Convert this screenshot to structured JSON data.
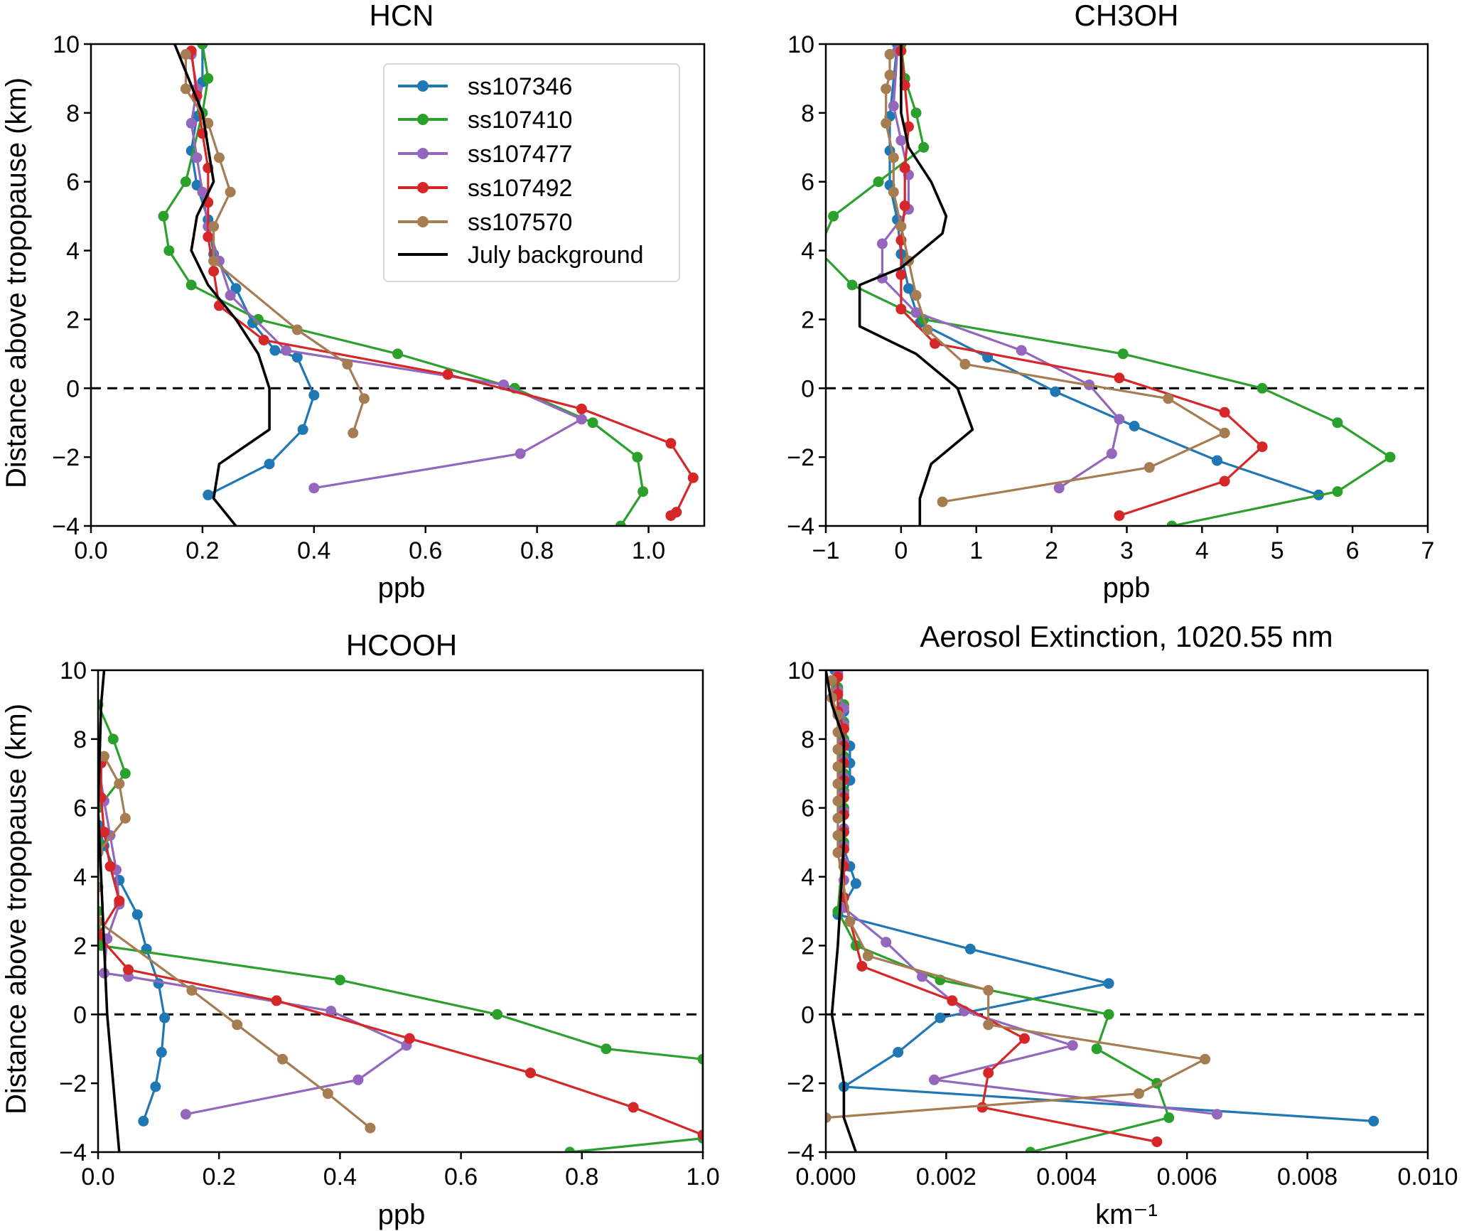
{
  "chart_data": [
    {
      "type": "line",
      "title": "HCN",
      "xlabel": "ppb",
      "ylabel": "Distance above tropopause (km)",
      "xlim": [
        0.0,
        1.1
      ],
      "ylim": [
        -4,
        10
      ],
      "xticks": [
        "0.0",
        "0.2",
        "0.4",
        "0.6",
        "0.8",
        "1.0"
      ],
      "yticks": [
        "−4",
        "−2",
        "0",
        "2",
        "4",
        "6",
        "8",
        "10"
      ],
      "grid": false,
      "zero_line": "dashed",
      "legend_position": "top-right",
      "series": [
        {
          "name": "ss107346",
          "color": "#1f77b4",
          "markers": true,
          "x": [
            0.2,
            0.2,
            0.19,
            0.18,
            0.19,
            0.21,
            0.22,
            0.26,
            0.29,
            0.33,
            0.37,
            0.4,
            0.38,
            0.32,
            0.21
          ],
          "y": [
            10.0,
            8.9,
            7.9,
            6.9,
            5.9,
            4.9,
            3.9,
            2.9,
            1.9,
            1.1,
            0.9,
            -0.2,
            -1.2,
            -2.2,
            -3.1
          ]
        },
        {
          "name": "ss107410",
          "color": "#2ca02c",
          "markers": true,
          "x": [
            0.2,
            0.21,
            0.2,
            0.17,
            0.13,
            0.14,
            0.18,
            0.3,
            0.55,
            0.76,
            0.9,
            0.98,
            0.99,
            0.95
          ],
          "y": [
            10.0,
            9.0,
            8.0,
            6.0,
            5.0,
            4.0,
            3.0,
            2.0,
            1.0,
            0.0,
            -1.0,
            -2.0,
            -3.0,
            -4.0
          ]
        },
        {
          "name": "ss107477",
          "color": "#9467bd",
          "markers": true,
          "x": [
            0.18,
            0.19,
            0.18,
            0.19,
            0.2,
            0.21,
            0.23,
            0.25,
            0.35,
            0.74,
            0.88,
            0.77,
            0.4
          ],
          "y": [
            9.7,
            8.7,
            7.7,
            6.7,
            5.7,
            4.7,
            3.7,
            2.7,
            1.1,
            0.1,
            -0.9,
            -1.9,
            -2.9
          ]
        },
        {
          "name": "ss107492",
          "color": "#d62728",
          "markers": true,
          "x": [
            0.18,
            0.19,
            0.2,
            0.21,
            0.21,
            0.21,
            0.22,
            0.23,
            0.31,
            0.64,
            0.88,
            1.04,
            1.08,
            1.05,
            1.04
          ],
          "y": [
            9.8,
            8.5,
            7.4,
            6.4,
            5.4,
            4.4,
            3.4,
            2.4,
            1.4,
            0.4,
            -0.6,
            -1.6,
            -2.6,
            -3.6,
            -3.7
          ]
        },
        {
          "name": "ss107570",
          "color": "#a67c52",
          "markers": true,
          "x": [
            0.17,
            0.17,
            0.21,
            0.23,
            0.25,
            0.22,
            0.22,
            0.37,
            0.46,
            0.49,
            0.47
          ],
          "y": [
            9.7,
            8.7,
            7.7,
            6.7,
            5.7,
            4.7,
            3.7,
            1.7,
            0.7,
            -0.3,
            -1.3
          ]
        },
        {
          "name": "July background",
          "color": "#000000",
          "markers": false,
          "x": [
            0.15,
            0.2,
            0.22,
            0.19,
            0.18,
            0.21,
            0.26,
            0.3,
            0.32,
            0.32,
            0.23,
            0.22,
            0.26
          ],
          "y": [
            10.0,
            8.0,
            6.0,
            5.0,
            4.0,
            3.0,
            2.0,
            1.0,
            0.0,
            -1.2,
            -2.2,
            -3.2,
            -4.0
          ]
        }
      ]
    },
    {
      "type": "line",
      "title": "CH3OH",
      "xlabel": "ppb",
      "ylabel": "",
      "xlim": [
        -1,
        7
      ],
      "ylim": [
        -4,
        10
      ],
      "xticks": [
        "−1",
        "0",
        "1",
        "2",
        "3",
        "4",
        "5",
        "6",
        "7"
      ],
      "yticks": [
        "−4",
        "−2",
        "0",
        "2",
        "4",
        "6",
        "8",
        "10"
      ],
      "grid": false,
      "zero_line": "dashed",
      "series": [
        {
          "name": "ss107346",
          "color": "#1f77b4",
          "markers": true,
          "x": [
            -0.05,
            -0.15,
            -0.15,
            -0.15,
            -0.05,
            0.0,
            0.1,
            0.25,
            1.15,
            2.05,
            3.1,
            4.2,
            5.55
          ],
          "y": [
            10.0,
            7.9,
            6.9,
            5.9,
            4.9,
            3.9,
            2.9,
            1.9,
            0.9,
            -0.1,
            -1.1,
            -2.1,
            -3.1
          ]
        },
        {
          "name": "ss107410",
          "color": "#2ca02c",
          "markers": true,
          "x": [
            0.0,
            0.05,
            0.2,
            0.3,
            -0.3,
            -0.9,
            -1.1,
            -0.65,
            0.3,
            2.95,
            4.8,
            5.8,
            6.5,
            5.8,
            3.6
          ],
          "y": [
            10.0,
            9.0,
            8.0,
            7.0,
            6.0,
            5.0,
            4.0,
            3.0,
            2.0,
            1.0,
            0.0,
            -1.0,
            -2.0,
            -3.0,
            -4.0
          ]
        },
        {
          "name": "ss107477",
          "color": "#9467bd",
          "markers": true,
          "x": [
            -0.05,
            -0.1,
            0.0,
            0.1,
            0.1,
            -0.25,
            -0.25,
            0.2,
            1.6,
            2.5,
            2.9,
            2.8,
            2.1
          ],
          "y": [
            9.8,
            8.2,
            7.2,
            6.2,
            5.2,
            4.2,
            3.2,
            2.2,
            1.1,
            0.1,
            -0.9,
            -1.9,
            -2.9
          ]
        },
        {
          "name": "ss107492",
          "color": "#d62728",
          "markers": true,
          "x": [
            0.0,
            0.05,
            0.1,
            0.05,
            0.05,
            0.0,
            0.0,
            0.0,
            0.45,
            2.9,
            4.3,
            4.8,
            4.3,
            2.9
          ],
          "y": [
            9.8,
            8.8,
            7.6,
            6.4,
            5.3,
            4.3,
            3.3,
            2.3,
            1.3,
            0.3,
            -0.7,
            -1.7,
            -2.7,
            -3.7
          ]
        },
        {
          "name": "ss107570",
          "color": "#a67c52",
          "markers": true,
          "x": [
            -0.15,
            -0.15,
            -0.2,
            -0.2,
            -0.1,
            -0.1,
            0.0,
            0.1,
            0.2,
            0.35,
            0.85,
            3.55,
            4.3,
            3.3,
            0.55
          ],
          "y": [
            9.7,
            9.1,
            8.7,
            7.7,
            6.7,
            5.7,
            4.7,
            3.7,
            2.7,
            1.7,
            0.7,
            -0.3,
            -1.3,
            -2.3,
            -3.3
          ]
        },
        {
          "name": "July background",
          "color": "#000000",
          "markers": false,
          "x": [
            0.0,
            0.0,
            0.1,
            0.4,
            0.6,
            0.55,
            0.0,
            -0.55,
            -0.55,
            0.2,
            0.75,
            0.95,
            0.4,
            0.25,
            0.25
          ],
          "y": [
            10.0,
            8.0,
            7.0,
            6.0,
            5.0,
            4.5,
            3.5,
            3.0,
            1.8,
            1.0,
            0.0,
            -1.2,
            -2.2,
            -3.2,
            -4.0
          ]
        }
      ]
    },
    {
      "type": "line",
      "title": "HCOOH",
      "xlabel": "ppb",
      "ylabel": "Distance above tropopause (km)",
      "xlim": [
        0.0,
        1.0
      ],
      "ylim": [
        -4,
        10
      ],
      "xticks": [
        "0.0",
        "0.2",
        "0.4",
        "0.6",
        "0.8",
        "1.0"
      ],
      "yticks": [
        "−4",
        "−2",
        "0",
        "2",
        "4",
        "6",
        "8",
        "10"
      ],
      "grid": false,
      "zero_line": "dashed",
      "series": [
        {
          "name": "ss107346",
          "color": "#1f77b4",
          "markers": true,
          "x": [
            0.0,
            0.01,
            0.035,
            0.065,
            0.08,
            0.1,
            0.11,
            0.105,
            0.095,
            0.075
          ],
          "y": [
            5.5,
            4.9,
            3.9,
            2.9,
            1.9,
            0.9,
            -0.1,
            -1.1,
            -2.1,
            -3.1
          ]
        },
        {
          "name": "ss107410",
          "color": "#2ca02c",
          "markers": true,
          "x": [
            0.0,
            0.025,
            0.045,
            0.0,
            0.0,
            0.0,
            0.005,
            0.4,
            0.66,
            0.84,
            1.0,
            1.0,
            0.78
          ],
          "y": [
            9.0,
            8.0,
            7.0,
            6.0,
            5.0,
            3.0,
            2.0,
            1.0,
            0.0,
            -1.0,
            -1.3,
            -3.6,
            -4.0
          ]
        },
        {
          "name": "ss107477",
          "color": "#9467bd",
          "markers": true,
          "x": [
            0.0,
            0.01,
            0.02,
            0.03,
            0.035,
            0.015,
            0.01,
            0.05,
            0.385,
            0.51,
            0.43,
            0.145
          ],
          "y": [
            7.3,
            6.2,
            5.2,
            4.2,
            3.2,
            2.2,
            1.2,
            1.1,
            0.1,
            -0.9,
            -1.9,
            -2.9
          ]
        },
        {
          "name": "ss107492",
          "color": "#d62728",
          "markers": true,
          "x": [
            0.005,
            0.005,
            0.01,
            0.02,
            0.035,
            0.0,
            0.05,
            0.295,
            0.515,
            0.715,
            0.885,
            1.0
          ],
          "y": [
            7.3,
            6.3,
            5.3,
            4.3,
            3.3,
            2.3,
            1.3,
            0.4,
            -0.7,
            -1.7,
            -2.7,
            -3.5
          ]
        },
        {
          "name": "ss107570",
          "color": "#a67c52",
          "markers": true,
          "x": [
            0.01,
            0.035,
            0.045,
            0.0,
            0.0,
            0.0,
            0.155,
            0.23,
            0.305,
            0.38,
            0.45
          ],
          "y": [
            7.5,
            6.7,
            5.7,
            4.7,
            3.7,
            2.7,
            0.7,
            -0.3,
            -1.3,
            -2.3,
            -3.3
          ]
        },
        {
          "name": "July background",
          "color": "#000000",
          "markers": false,
          "x": [
            0.01,
            0.005,
            0.0,
            0.005,
            0.01,
            0.015,
            0.02,
            0.025,
            0.03,
            0.035
          ],
          "y": [
            10.0,
            9.0,
            6.0,
            4.0,
            2.0,
            0.0,
            -1.0,
            -2.0,
            -3.0,
            -4.0
          ]
        }
      ]
    },
    {
      "type": "line",
      "title": "Aerosol Extinction, 1020.55 nm",
      "xlabel": "km⁻¹",
      "ylabel": "",
      "xlim": [
        0.0,
        0.01
      ],
      "ylim": [
        -4,
        10
      ],
      "xticks": [
        "0.000",
        "0.002",
        "0.004",
        "0.006",
        "0.008",
        "0.010"
      ],
      "yticks": [
        "−4",
        "−2",
        "0",
        "2",
        "4",
        "6",
        "8",
        "10"
      ],
      "grid": false,
      "zero_line": "dashed",
      "series": [
        {
          "name": "ss107346",
          "color": "#1f77b4",
          "markers": true,
          "x": [
            0.00015,
            0.0002,
            0.0003,
            0.0003,
            0.0004,
            0.0004,
            0.0004,
            0.0003,
            0.0003,
            0.0003,
            0.0003,
            0.0004,
            0.0005,
            0.0002,
            0.0024,
            0.0047,
            0.0019,
            0.0012,
            0.0003,
            0.0091
          ],
          "y": [
            10.0,
            9.4,
            8.8,
            8.3,
            7.8,
            7.3,
            6.8,
            6.3,
            5.8,
            5.3,
            4.8,
            4.3,
            3.8,
            2.9,
            1.9,
            0.9,
            -0.1,
            -1.1,
            -2.1,
            -3.1
          ]
        },
        {
          "name": "ss107410",
          "color": "#2ca02c",
          "markers": true,
          "x": [
            0.0002,
            0.0002,
            0.0003,
            0.0003,
            0.0003,
            0.0003,
            0.0003,
            0.0003,
            0.0003,
            0.0003,
            0.0002,
            0.0005,
            0.0019,
            0.0047,
            0.0045,
            0.0055,
            0.0057,
            0.0034
          ],
          "y": [
            10.0,
            9.5,
            9.0,
            8.5,
            8.0,
            7.5,
            7.0,
            6.5,
            6.0,
            5.0,
            3.0,
            2.0,
            1.0,
            0.0,
            -1.0,
            -2.0,
            -3.0,
            -4.0
          ]
        },
        {
          "name": "ss107477",
          "color": "#9467bd",
          "markers": true,
          "x": [
            0.0002,
            0.0002,
            0.0003,
            0.0003,
            0.0003,
            0.0003,
            0.0003,
            0.0003,
            0.0003,
            0.0003,
            0.0003,
            0.0003,
            0.0003,
            0.0003,
            0.001,
            0.0016,
            0.0023,
            0.0041,
            0.0018,
            0.0065
          ],
          "y": [
            9.9,
            9.4,
            8.9,
            8.4,
            7.9,
            7.4,
            6.9,
            6.4,
            5.9,
            5.4,
            4.9,
            4.4,
            3.9,
            3.1,
            2.1,
            1.1,
            0.1,
            -0.9,
            -1.9,
            -2.9
          ]
        },
        {
          "name": "ss107492",
          "color": "#d62728",
          "markers": true,
          "x": [
            0.0002,
            0.0002,
            0.0002,
            0.0003,
            0.0003,
            0.0003,
            0.0003,
            0.0003,
            0.0003,
            0.0003,
            0.0003,
            0.0003,
            0.0003,
            0.0006,
            0.0021,
            0.0033,
            0.0027,
            0.0026,
            0.0055
          ],
          "y": [
            9.8,
            9.3,
            8.8,
            8.3,
            7.8,
            7.3,
            6.8,
            6.3,
            5.8,
            5.3,
            4.8,
            4.3,
            3.4,
            1.4,
            0.4,
            -0.7,
            -1.7,
            -2.7,
            -3.7
          ]
        },
        {
          "name": "ss107570",
          "color": "#a67c52",
          "markers": true,
          "x": [
            0.0001,
            0.0001,
            0.0002,
            0.0002,
            0.0002,
            0.0002,
            0.0002,
            0.0002,
            0.0002,
            0.0002,
            0.0002,
            0.0004,
            0.0007,
            0.0027,
            0.0027,
            0.0063,
            0.0052,
            0.0
          ],
          "y": [
            9.7,
            9.2,
            8.7,
            8.2,
            7.7,
            7.2,
            6.7,
            6.2,
            5.7,
            5.2,
            4.7,
            2.7,
            1.7,
            0.7,
            -0.3,
            -1.3,
            -2.3,
            -3.0
          ]
        },
        {
          "name": "July background",
          "color": "#000000",
          "markers": false,
          "x": [
            0.0,
            0.0001,
            0.0003,
            0.0003,
            0.0002,
            0.0001,
            0.0002,
            0.0003,
            0.0003,
            0.0005
          ],
          "y": [
            10.0,
            9.0,
            8.0,
            5.0,
            2.0,
            0.0,
            -1.0,
            -2.0,
            -3.0,
            -4.0
          ]
        }
      ]
    }
  ]
}
